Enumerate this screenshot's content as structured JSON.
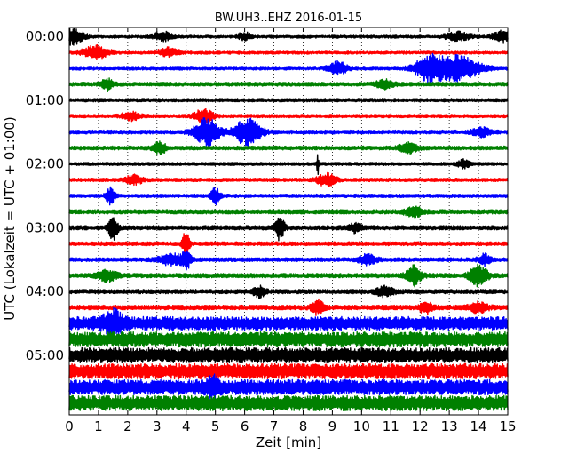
{
  "chart_data": {
    "type": "line",
    "title": "BW.UH3..EHZ 2016-01-15",
    "xlabel": "Zeit  [min]",
    "ylabel": "UTC (Lokalzeit = UTC + 01:00)",
    "xlim": [
      0,
      15
    ],
    "x_ticks": [
      "0",
      "1",
      "2",
      "3",
      "4",
      "5",
      "6",
      "7",
      "8",
      "9",
      "10",
      "11",
      "12",
      "13",
      "14",
      "15"
    ],
    "y_ticks": [
      "00:00",
      "01:00",
      "02:00",
      "03:00",
      "04:00",
      "05:00"
    ],
    "minutes_per_trace": 15,
    "grid": "vertical dotted lines at each minute",
    "trace_colors": [
      "#000000",
      "#ff0000",
      "#0000ff",
      "#008000"
    ],
    "traces": [
      {
        "start": "00:00",
        "color": "#000000",
        "amp": 0.25,
        "events": [
          {
            "t": 0.1,
            "a": 1.0,
            "w": 0.35
          },
          {
            "t": 3.2,
            "a": 0.5,
            "w": 0.3
          },
          {
            "t": 6.0,
            "a": 0.4,
            "w": 0.2
          },
          {
            "t": 13.3,
            "a": 0.5,
            "w": 0.4
          },
          {
            "t": 14.8,
            "a": 0.6,
            "w": 0.3
          }
        ]
      },
      {
        "start": "00:15",
        "color": "#ff0000",
        "amp": 0.25,
        "events": [
          {
            "t": 0.9,
            "a": 0.8,
            "w": 0.4
          },
          {
            "t": 3.4,
            "a": 0.5,
            "w": 0.3
          }
        ]
      },
      {
        "start": "00:30",
        "color": "#0000ff",
        "amp": 0.25,
        "events": [
          {
            "t": 9.2,
            "a": 0.8,
            "w": 0.3
          },
          {
            "t": 12.3,
            "a": 1.6,
            "w": 0.45
          },
          {
            "t": 13.3,
            "a": 1.6,
            "w": 0.7
          }
        ]
      },
      {
        "start": "00:45",
        "color": "#008000",
        "amp": 0.25,
        "events": [
          {
            "t": 1.3,
            "a": 0.7,
            "w": 0.2
          },
          {
            "t": 10.8,
            "a": 0.5,
            "w": 0.3
          }
        ]
      },
      {
        "start": "01:00",
        "color": "#000000",
        "amp": 0.22,
        "events": []
      },
      {
        "start": "01:15",
        "color": "#ff0000",
        "amp": 0.22,
        "events": [
          {
            "t": 2.1,
            "a": 0.5,
            "w": 0.3
          },
          {
            "t": 4.6,
            "a": 0.9,
            "w": 0.3
          }
        ]
      },
      {
        "start": "01:30",
        "color": "#0000ff",
        "amp": 0.25,
        "events": [
          {
            "t": 4.7,
            "a": 1.8,
            "w": 0.4
          },
          {
            "t": 6.1,
            "a": 1.7,
            "w": 0.45
          },
          {
            "t": 14.1,
            "a": 0.5,
            "w": 0.3
          }
        ]
      },
      {
        "start": "01:45",
        "color": "#008000",
        "amp": 0.25,
        "events": [
          {
            "t": 3.1,
            "a": 0.8,
            "w": 0.2
          },
          {
            "t": 11.6,
            "a": 0.6,
            "w": 0.3
          }
        ]
      },
      {
        "start": "02:00",
        "color": "#000000",
        "amp": 0.2,
        "events": [
          {
            "t": 8.5,
            "a": 1.6,
            "w": 0.03
          },
          {
            "t": 13.5,
            "a": 0.5,
            "w": 0.2
          }
        ]
      },
      {
        "start": "02:15",
        "color": "#ff0000",
        "amp": 0.22,
        "events": [
          {
            "t": 2.2,
            "a": 0.6,
            "w": 0.3
          },
          {
            "t": 8.8,
            "a": 0.8,
            "w": 0.3
          }
        ]
      },
      {
        "start": "02:30",
        "color": "#0000ff",
        "amp": 0.22,
        "events": [
          {
            "t": 1.4,
            "a": 1.0,
            "w": 0.15
          },
          {
            "t": 5.0,
            "a": 1.0,
            "w": 0.15
          }
        ]
      },
      {
        "start": "02:45",
        "color": "#008000",
        "amp": 0.28,
        "events": [
          {
            "t": 11.8,
            "a": 0.6,
            "w": 0.3
          }
        ]
      },
      {
        "start": "03:00",
        "color": "#000000",
        "amp": 0.28,
        "events": [
          {
            "t": 1.5,
            "a": 1.6,
            "w": 0.15
          },
          {
            "t": 7.2,
            "a": 1.6,
            "w": 0.15
          },
          {
            "t": 9.8,
            "a": 0.6,
            "w": 0.2
          }
        ]
      },
      {
        "start": "03:15",
        "color": "#ff0000",
        "amp": 0.25,
        "events": [
          {
            "t": 4.0,
            "a": 1.9,
            "w": 0.12
          }
        ]
      },
      {
        "start": "03:30",
        "color": "#0000ff",
        "amp": 0.25,
        "events": [
          {
            "t": 3.5,
            "a": 0.7,
            "w": 0.4
          },
          {
            "t": 4.0,
            "a": 1.2,
            "w": 0.15
          },
          {
            "t": 10.2,
            "a": 0.6,
            "w": 0.3
          },
          {
            "t": 14.2,
            "a": 0.7,
            "w": 0.2
          }
        ]
      },
      {
        "start": "03:45",
        "color": "#008000",
        "amp": 0.28,
        "events": [
          {
            "t": 1.3,
            "a": 0.7,
            "w": 0.3
          },
          {
            "t": 11.8,
            "a": 1.2,
            "w": 0.25
          },
          {
            "t": 14.0,
            "a": 1.3,
            "w": 0.3
          }
        ]
      },
      {
        "start": "04:00",
        "color": "#000000",
        "amp": 0.28,
        "events": [
          {
            "t": 6.5,
            "a": 0.7,
            "w": 0.2
          },
          {
            "t": 10.8,
            "a": 0.6,
            "w": 0.3
          }
        ]
      },
      {
        "start": "04:15",
        "color": "#ff0000",
        "amp": 0.3,
        "events": [
          {
            "t": 8.5,
            "a": 0.9,
            "w": 0.2
          },
          {
            "t": 12.2,
            "a": 0.8,
            "w": 0.2
          },
          {
            "t": 14.0,
            "a": 0.6,
            "w": 0.3
          }
        ]
      },
      {
        "start": "04:30",
        "color": "#0000ff",
        "amp": 0.9,
        "events": [
          {
            "t": 1.5,
            "a": 1.2,
            "w": 0.3
          }
        ]
      },
      {
        "start": "04:45",
        "color": "#008000",
        "amp": 1.0,
        "events": []
      },
      {
        "start": "05:00",
        "color": "#000000",
        "amp": 1.0,
        "events": []
      },
      {
        "start": "05:15",
        "color": "#ff0000",
        "amp": 1.0,
        "events": []
      },
      {
        "start": "05:30",
        "color": "#0000ff",
        "amp": 1.0,
        "events": [
          {
            "t": 4.9,
            "a": 1.2,
            "w": 0.15
          }
        ]
      },
      {
        "start": "05:45",
        "color": "#008000",
        "amp": 1.0,
        "events": []
      }
    ]
  }
}
